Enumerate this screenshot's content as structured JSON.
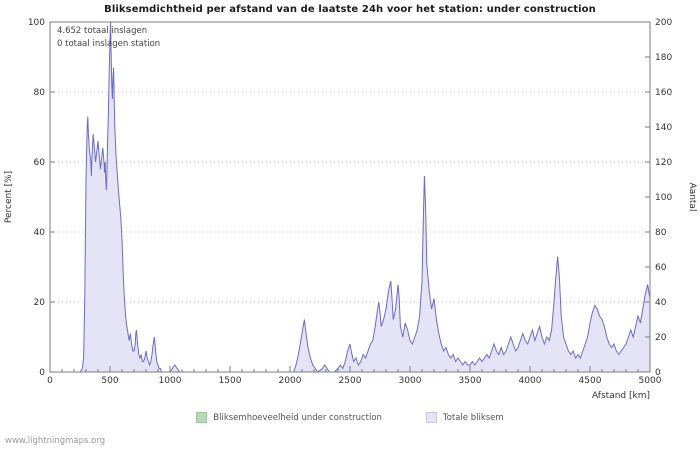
{
  "watermark": "www.lightningmaps.org",
  "chart_data": {
    "type": "area",
    "title": "Bliksemdichtheid per afstand van de laatste 24h voor het station: under construction",
    "xlabel": "Afstand  [km]",
    "ylabel_left": "Percent  [%]",
    "ylabel_right": "Aantal",
    "annotations": [
      "4.652 totaal inslagen",
      "0 totaal inslagen station"
    ],
    "xlim": [
      0,
      5000
    ],
    "ylim_left": [
      0,
      100
    ],
    "ylim_right": [
      0,
      200
    ],
    "x_tick_step": 500,
    "x_minor_tick_step": 100,
    "y_left_tick_step": 20,
    "y_right_tick_step": 20,
    "gridlines_percent": [
      20,
      40,
      60,
      80
    ],
    "grid": "horizontal-dotted",
    "legend_position": "bottom-center",
    "legend": [
      {
        "label": "Bliksemhoeveelheid under construction",
        "color": "#b4dbb4"
      },
      {
        "label": "Totale bliksem",
        "color": "#e4e4f6"
      }
    ],
    "series": [
      {
        "name": "Totale bliksem",
        "axis": "left_percent",
        "line_color": "#6a6ad0",
        "fill_color": "#e4e4f6",
        "points": [
          [
            0,
            0
          ],
          [
            100,
            0
          ],
          [
            200,
            0
          ],
          [
            250,
            0
          ],
          [
            270,
            1
          ],
          [
            280,
            4
          ],
          [
            290,
            22
          ],
          [
            300,
            55
          ],
          [
            310,
            70
          ],
          [
            315,
            73
          ],
          [
            320,
            68
          ],
          [
            330,
            63
          ],
          [
            340,
            60
          ],
          [
            345,
            56
          ],
          [
            350,
            62
          ],
          [
            360,
            68
          ],
          [
            370,
            64
          ],
          [
            380,
            60
          ],
          [
            390,
            63
          ],
          [
            400,
            66
          ],
          [
            410,
            62
          ],
          [
            420,
            58
          ],
          [
            430,
            61
          ],
          [
            440,
            64
          ],
          [
            450,
            60
          ],
          [
            455,
            57
          ],
          [
            460,
            60
          ],
          [
            465,
            55
          ],
          [
            470,
            52
          ],
          [
            475,
            58
          ],
          [
            480,
            66
          ],
          [
            485,
            72
          ],
          [
            490,
            80
          ],
          [
            495,
            88
          ],
          [
            500,
            95
          ],
          [
            505,
            100
          ],
          [
            510,
            90
          ],
          [
            515,
            82
          ],
          [
            520,
            78
          ],
          [
            525,
            84
          ],
          [
            530,
            87
          ],
          [
            535,
            78
          ],
          [
            540,
            70
          ],
          [
            545,
            66
          ],
          [
            550,
            62
          ],
          [
            560,
            57
          ],
          [
            570,
            52
          ],
          [
            580,
            48
          ],
          [
            590,
            44
          ],
          [
            600,
            38
          ],
          [
            610,
            28
          ],
          [
            620,
            21
          ],
          [
            630,
            16
          ],
          [
            640,
            13
          ],
          [
            650,
            11
          ],
          [
            660,
            9
          ],
          [
            670,
            11
          ],
          [
            680,
            8
          ],
          [
            690,
            6
          ],
          [
            700,
            6
          ],
          [
            710,
            8
          ],
          [
            715,
            11
          ],
          [
            720,
            12
          ],
          [
            730,
            8
          ],
          [
            740,
            5
          ],
          [
            750,
            4
          ],
          [
            760,
            5
          ],
          [
            770,
            3
          ],
          [
            780,
            3
          ],
          [
            790,
            4
          ],
          [
            800,
            6
          ],
          [
            810,
            4
          ],
          [
            820,
            3
          ],
          [
            830,
            2
          ],
          [
            840,
            3
          ],
          [
            850,
            5
          ],
          [
            860,
            8
          ],
          [
            870,
            10
          ],
          [
            880,
            6
          ],
          [
            890,
            3
          ],
          [
            900,
            2
          ],
          [
            910,
            1
          ],
          [
            920,
            1
          ],
          [
            930,
            0
          ],
          [
            1000,
            0
          ],
          [
            1020,
            1
          ],
          [
            1040,
            2
          ],
          [
            1060,
            1
          ],
          [
            1080,
            0
          ],
          [
            1200,
            0
          ],
          [
            1400,
            0
          ],
          [
            1600,
            0
          ],
          [
            1800,
            0
          ],
          [
            2000,
            0
          ],
          [
            2030,
            0
          ],
          [
            2050,
            2
          ],
          [
            2070,
            5
          ],
          [
            2090,
            9
          ],
          [
            2110,
            13
          ],
          [
            2120,
            15
          ],
          [
            2130,
            12
          ],
          [
            2150,
            7
          ],
          [
            2170,
            4
          ],
          [
            2190,
            2
          ],
          [
            2210,
            1
          ],
          [
            2230,
            0
          ],
          [
            2270,
            1
          ],
          [
            2290,
            2
          ],
          [
            2310,
            1
          ],
          [
            2330,
            0
          ],
          [
            2370,
            0
          ],
          [
            2400,
            1
          ],
          [
            2420,
            2
          ],
          [
            2440,
            1
          ],
          [
            2460,
            3
          ],
          [
            2480,
            6
          ],
          [
            2500,
            8
          ],
          [
            2510,
            6
          ],
          [
            2530,
            3
          ],
          [
            2550,
            4
          ],
          [
            2570,
            2
          ],
          [
            2590,
            3
          ],
          [
            2610,
            5
          ],
          [
            2630,
            4
          ],
          [
            2650,
            6
          ],
          [
            2670,
            8
          ],
          [
            2690,
            9
          ],
          [
            2710,
            13
          ],
          [
            2730,
            18
          ],
          [
            2740,
            20
          ],
          [
            2750,
            17
          ],
          [
            2760,
            13
          ],
          [
            2780,
            15
          ],
          [
            2800,
            18
          ],
          [
            2820,
            23
          ],
          [
            2840,
            26
          ],
          [
            2850,
            21
          ],
          [
            2860,
            15
          ],
          [
            2880,
            18
          ],
          [
            2900,
            25
          ],
          [
            2910,
            21
          ],
          [
            2920,
            13
          ],
          [
            2940,
            10
          ],
          [
            2960,
            14
          ],
          [
            2980,
            12
          ],
          [
            3000,
            9
          ],
          [
            3020,
            8
          ],
          [
            3040,
            10
          ],
          [
            3060,
            12
          ],
          [
            3080,
            16
          ],
          [
            3100,
            26
          ],
          [
            3110,
            42
          ],
          [
            3120,
            56
          ],
          [
            3130,
            47
          ],
          [
            3140,
            31
          ],
          [
            3160,
            23
          ],
          [
            3180,
            18
          ],
          [
            3200,
            21
          ],
          [
            3220,
            15
          ],
          [
            3240,
            11
          ],
          [
            3260,
            8
          ],
          [
            3280,
            6
          ],
          [
            3300,
            7
          ],
          [
            3320,
            5
          ],
          [
            3340,
            4
          ],
          [
            3360,
            5
          ],
          [
            3380,
            3
          ],
          [
            3400,
            4
          ],
          [
            3420,
            3
          ],
          [
            3440,
            2
          ],
          [
            3460,
            3
          ],
          [
            3480,
            2
          ],
          [
            3500,
            2
          ],
          [
            3520,
            3
          ],
          [
            3540,
            2
          ],
          [
            3560,
            3
          ],
          [
            3580,
            4
          ],
          [
            3600,
            3
          ],
          [
            3620,
            4
          ],
          [
            3640,
            5
          ],
          [
            3660,
            4
          ],
          [
            3680,
            6
          ],
          [
            3700,
            8
          ],
          [
            3720,
            6
          ],
          [
            3740,
            5
          ],
          [
            3760,
            7
          ],
          [
            3780,
            5
          ],
          [
            3800,
            6
          ],
          [
            3820,
            8
          ],
          [
            3840,
            10
          ],
          [
            3860,
            8
          ],
          [
            3880,
            6
          ],
          [
            3900,
            7
          ],
          [
            3920,
            9
          ],
          [
            3940,
            11
          ],
          [
            3960,
            9
          ],
          [
            3980,
            8
          ],
          [
            4000,
            10
          ],
          [
            4020,
            12
          ],
          [
            4040,
            9
          ],
          [
            4060,
            11
          ],
          [
            4080,
            13
          ],
          [
            4100,
            10
          ],
          [
            4120,
            8
          ],
          [
            4140,
            10
          ],
          [
            4160,
            9
          ],
          [
            4180,
            12
          ],
          [
            4200,
            20
          ],
          [
            4215,
            27
          ],
          [
            4230,
            33
          ],
          [
            4245,
            27
          ],
          [
            4260,
            16
          ],
          [
            4280,
            10
          ],
          [
            4300,
            8
          ],
          [
            4320,
            6
          ],
          [
            4340,
            5
          ],
          [
            4360,
            6
          ],
          [
            4380,
            4
          ],
          [
            4400,
            5
          ],
          [
            4420,
            4
          ],
          [
            4440,
            6
          ],
          [
            4460,
            8
          ],
          [
            4480,
            10
          ],
          [
            4500,
            14
          ],
          [
            4520,
            17
          ],
          [
            4540,
            19
          ],
          [
            4560,
            18
          ],
          [
            4580,
            16
          ],
          [
            4600,
            15
          ],
          [
            4620,
            13
          ],
          [
            4640,
            10
          ],
          [
            4660,
            8
          ],
          [
            4680,
            7
          ],
          [
            4700,
            8
          ],
          [
            4720,
            6
          ],
          [
            4740,
            5
          ],
          [
            4760,
            6
          ],
          [
            4780,
            7
          ],
          [
            4800,
            8
          ],
          [
            4820,
            10
          ],
          [
            4840,
            12
          ],
          [
            4860,
            10
          ],
          [
            4880,
            13
          ],
          [
            4900,
            16
          ],
          [
            4920,
            14
          ],
          [
            4940,
            18
          ],
          [
            4960,
            22
          ],
          [
            4980,
            25
          ],
          [
            5000,
            21
          ]
        ]
      }
    ]
  }
}
